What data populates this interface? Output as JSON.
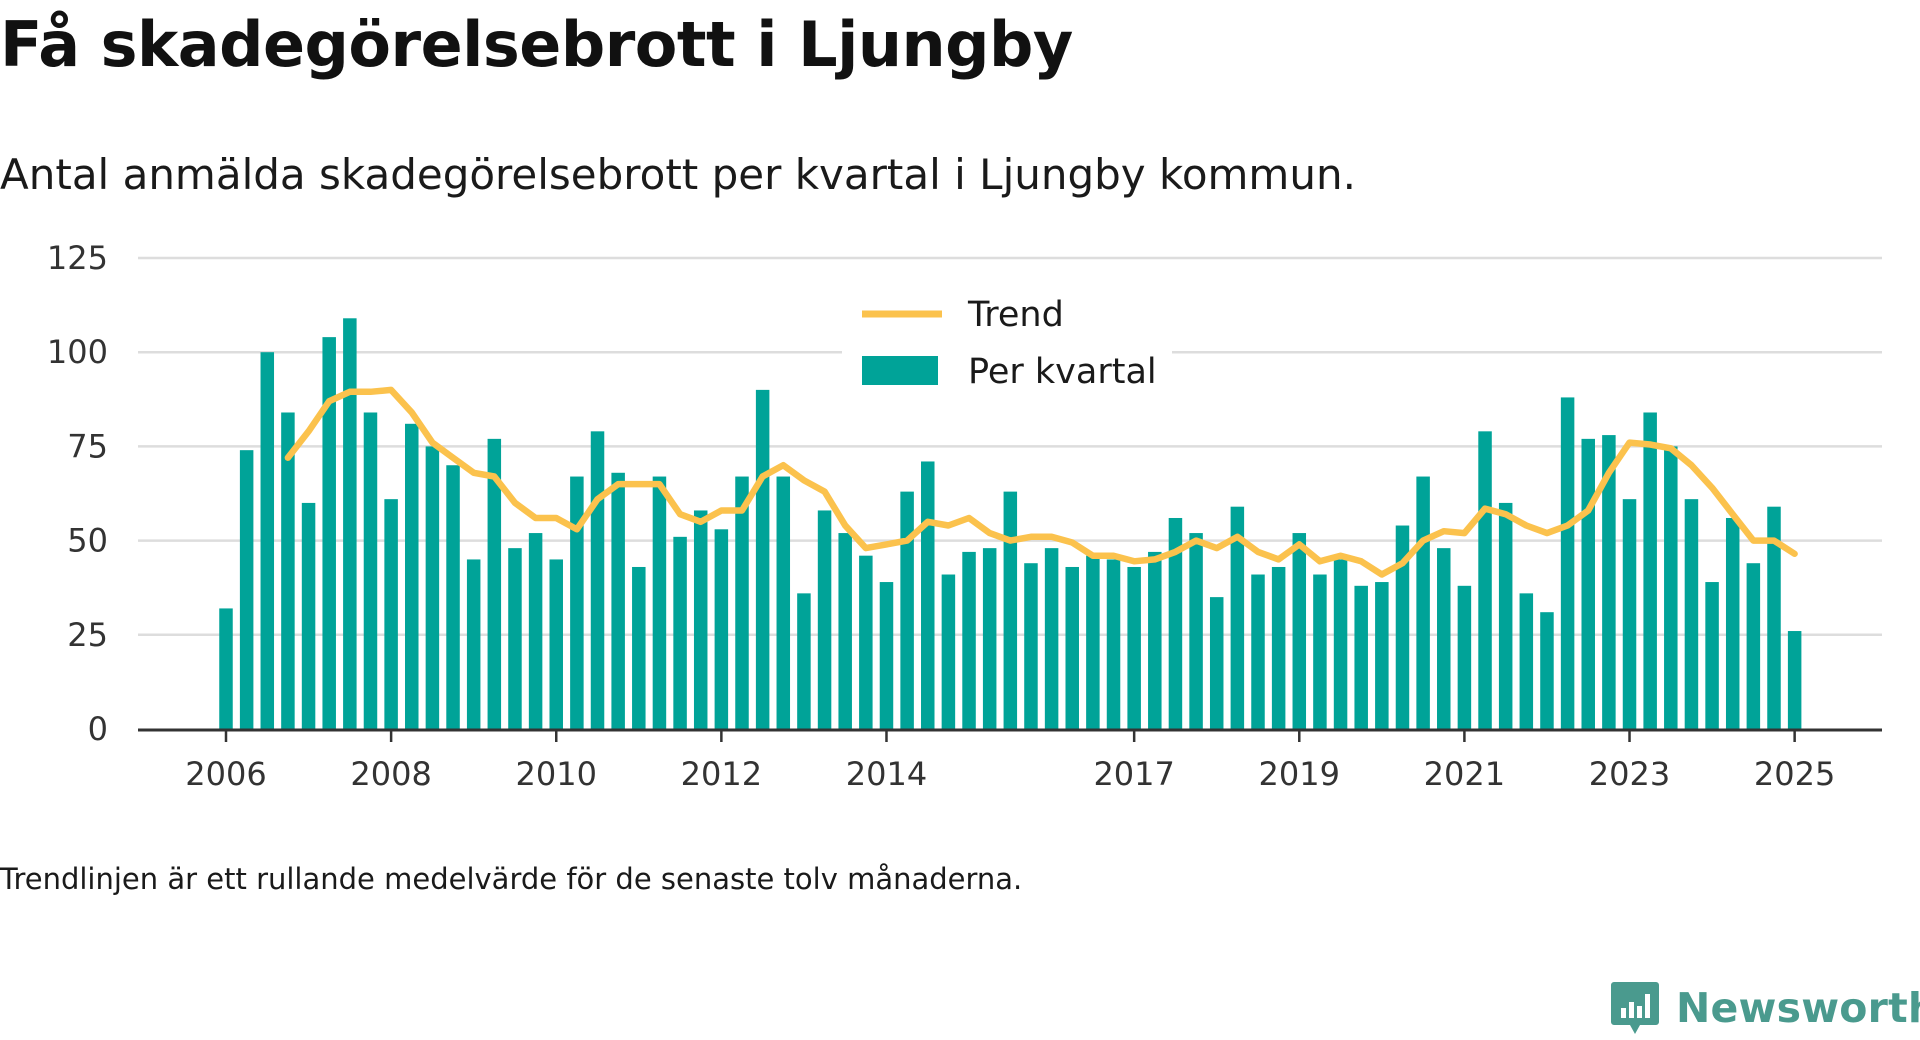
{
  "title": "Få skadegörelsebrott i Ljungby",
  "subtitle": "Antal anmälda skadegörelsebrott per kvartal i Ljungby kommun.",
  "footnote": "Trendlinjen är ett rullande medelvärde för de senaste tolv månaderna.",
  "brand": {
    "name": "Newsworthy",
    "icon": "newsworthy-logo-icon",
    "color": "#4a9a8e"
  },
  "colors": {
    "bars": "#00a398",
    "trend": "#fbc24d",
    "grid": "#dddddd",
    "axis": "#333333"
  },
  "chart_data": {
    "type": "bar",
    "x_unit": "quarter",
    "start": "2006 Q1",
    "y_ticks": [
      0,
      25,
      50,
      75,
      100,
      125
    ],
    "ylim": [
      0,
      125
    ],
    "x_ticks": [
      "2006",
      "2008",
      "2010",
      "2012",
      "2014",
      "2017",
      "2019",
      "2021",
      "2023",
      "2025"
    ],
    "legend_position": "top-center",
    "grid": true,
    "series": [
      {
        "name": "Per kvartal",
        "type": "bar",
        "values": [
          32,
          74,
          100,
          84,
          60,
          104,
          109,
          84,
          61,
          81,
          75,
          70,
          45,
          77,
          48,
          52,
          45,
          67,
          79,
          68,
          43,
          67,
          51,
          58,
          53,
          67,
          90,
          67,
          36,
          58,
          52,
          46,
          39,
          63,
          71,
          41,
          47,
          48,
          63,
          44,
          48,
          43,
          46,
          45,
          43,
          47,
          56,
          52,
          35,
          59,
          41,
          43,
          52,
          41,
          45,
          38,
          39,
          54,
          67,
          48,
          38,
          79,
          60,
          36,
          31,
          88,
          77,
          78,
          61,
          84,
          75,
          61,
          39,
          56,
          44,
          59,
          26
        ]
      },
      {
        "name": "Trend",
        "type": "line",
        "values": [
          null,
          null,
          null,
          72,
          79,
          87,
          89.5,
          89.5,
          90,
          84,
          76,
          72,
          68,
          67,
          60,
          56,
          56,
          53,
          61,
          65,
          65,
          65,
          57,
          55,
          58,
          58,
          67,
          70,
          66,
          63,
          54,
          48,
          49,
          50,
          55,
          54,
          56,
          52,
          50,
          51,
          51,
          49.5,
          46,
          46,
          44.5,
          45,
          47,
          50,
          48,
          51,
          47,
          45,
          49,
          44.5,
          46,
          44.5,
          41,
          44,
          50,
          52.5,
          52,
          58.5,
          57,
          54,
          52,
          54,
          58,
          68,
          76,
          75.5,
          74.5,
          70,
          64,
          57,
          50,
          50,
          46.5
        ]
      }
    ]
  }
}
